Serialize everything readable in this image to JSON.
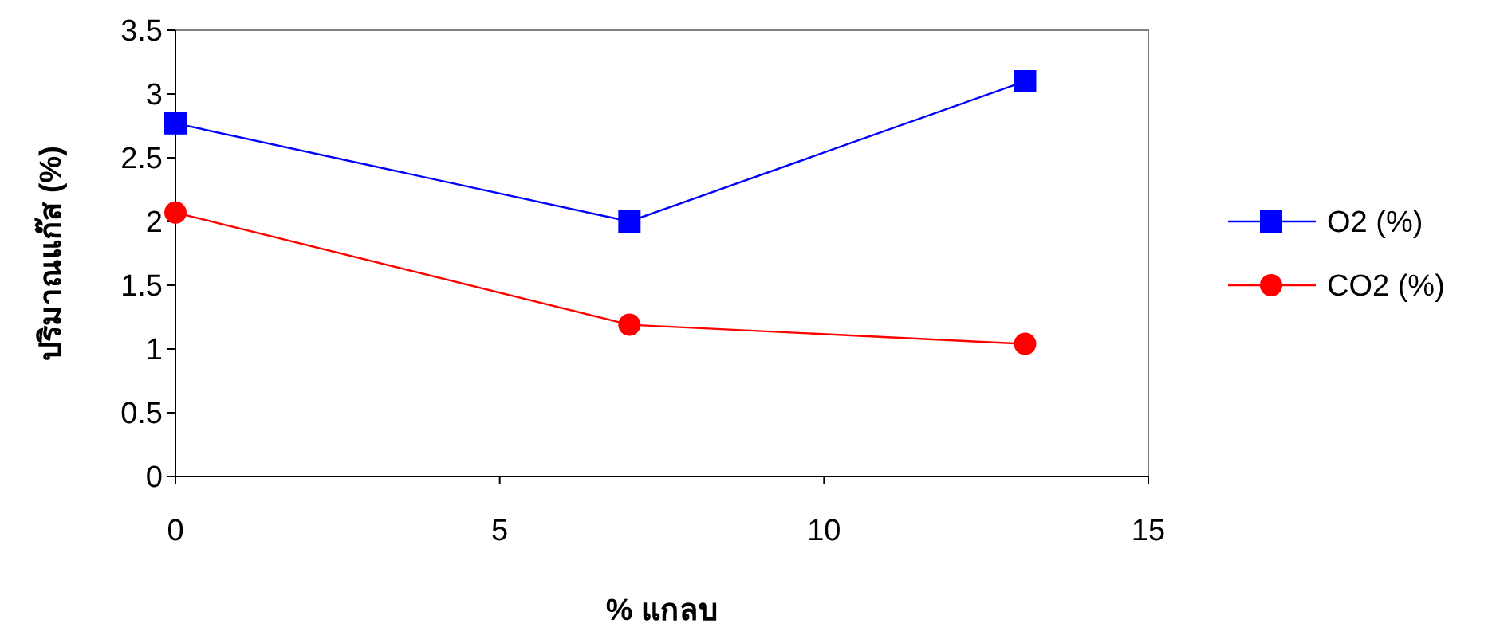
{
  "chart_data": {
    "type": "line",
    "xlabel": "% แกลบ",
    "ylabel": "ปริมาณแก๊ส (%)",
    "x": [
      0,
      7,
      13.1
    ],
    "series": [
      {
        "name": "O2 (%)",
        "color": "#0000ff",
        "marker": "square",
        "values": [
          2.77,
          2.0,
          3.1
        ]
      },
      {
        "name": "CO2 (%)",
        "color": "#ff0000",
        "marker": "circle",
        "values": [
          2.07,
          1.19,
          1.04
        ]
      }
    ],
    "xlim": [
      0,
      15
    ],
    "xticks": [
      0,
      5,
      10,
      15
    ],
    "ylim": [
      0,
      3.5
    ],
    "yticks": [
      0,
      0.5,
      1,
      1.5,
      2,
      2.5,
      3,
      3.5
    ],
    "grid": false,
    "legend": "right",
    "line_style": "solid"
  }
}
